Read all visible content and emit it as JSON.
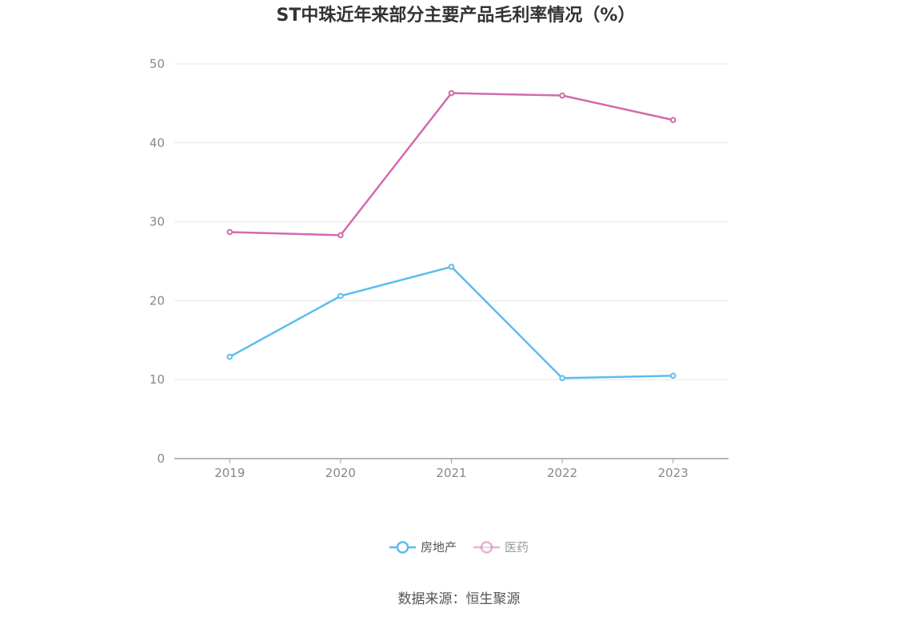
{
  "chart_data": {
    "type": "line",
    "title": "ST中珠近年来部分主要产品毛利率情况（%）",
    "categories": [
      "2019",
      "2020",
      "2021",
      "2022",
      "2023"
    ],
    "series": [
      {
        "name": "房地产",
        "values": [
          12.9,
          20.6,
          24.3,
          10.2,
          10.5
        ],
        "color": "#5bbdee"
      },
      {
        "name": "医药",
        "values": [
          28.7,
          28.3,
          46.3,
          46.0,
          42.9
        ],
        "color": "#d36aae"
      }
    ],
    "yticks": [
      "0",
      "10",
      "20",
      "30",
      "40",
      "50"
    ],
    "ylim": [
      0,
      50
    ],
    "grid": true,
    "legend_position": "bottom-center",
    "source": "数据来源：恒生聚源"
  }
}
